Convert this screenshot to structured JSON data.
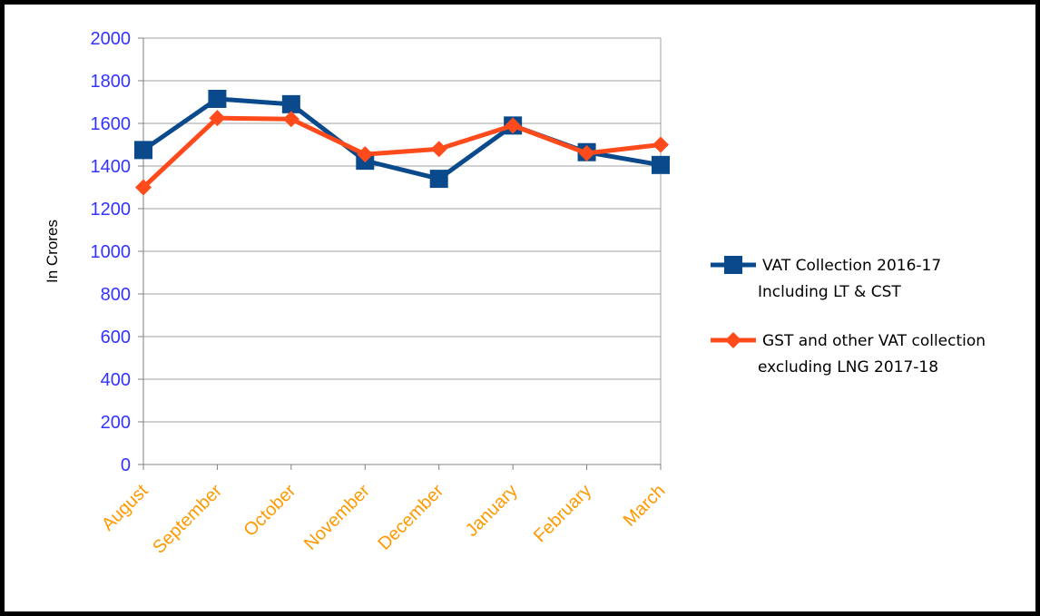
{
  "chart_data": {
    "type": "line",
    "categories": [
      "August",
      "September",
      "October",
      "November",
      "December",
      "January",
      "February",
      "March"
    ],
    "ylabel": "In Crores",
    "xlabel": "",
    "ylim": [
      0,
      2000
    ],
    "yticks": [
      0,
      200,
      400,
      600,
      800,
      1000,
      1200,
      1400,
      1600,
      1800,
      2000
    ],
    "grid": true,
    "legend_position": "right",
    "series": [
      {
        "name": "VAT Collection 2016-17 Including LT & CST",
        "legend_lines": [
          "VAT Collection 2016-17",
          "Including LT & CST"
        ],
        "color": "#0a4a8c",
        "marker": "square",
        "values": [
          1475,
          1715,
          1690,
          1425,
          1340,
          1590,
          1465,
          1405
        ]
      },
      {
        "name": "GST and other VAT collection excluding LNG 2017-18",
        "legend_lines": [
          "GST and other VAT collection",
          "excluding LNG 2017-18"
        ],
        "color": "#ff4a1c",
        "marker": "diamond",
        "values": [
          1300,
          1625,
          1620,
          1455,
          1480,
          1590,
          1460,
          1500
        ]
      }
    ],
    "colors": {
      "axis_ticks_y": "#3333ff",
      "axis_ticks_x": "#ff9900",
      "grid": "#a0a0a0"
    }
  }
}
